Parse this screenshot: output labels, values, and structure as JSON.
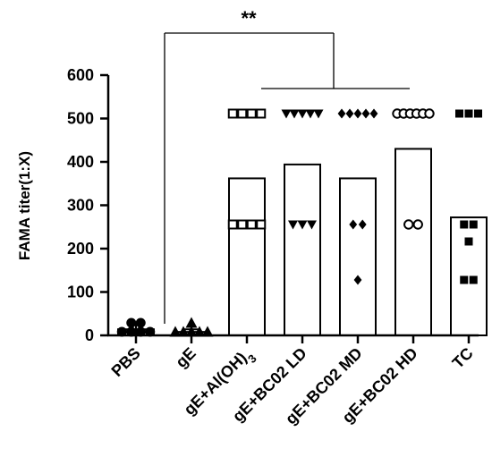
{
  "chart_data": {
    "type": "bar",
    "title": "",
    "xlabel": "",
    "ylabel": "FAMA titer(1:X)",
    "ylim": [
      0,
      600
    ],
    "yticks": [
      0,
      100,
      200,
      300,
      400,
      500,
      600
    ],
    "grid": false,
    "legend": "none",
    "categories": [
      "PBS",
      "gE",
      "gE+Al(OH)3",
      "gE+BC02 LD",
      "gE+BC02 MD",
      "gE+BC02 HD",
      "TC"
    ],
    "category_labels": [
      {
        "parts": [
          {
            "t": "PBS"
          }
        ]
      },
      {
        "parts": [
          {
            "t": "gE"
          }
        ]
      },
      {
        "parts": [
          {
            "t": "gE+Al(OH)"
          },
          {
            "t": "3",
            "sub": true
          }
        ]
      },
      {
        "parts": [
          {
            "t": "gE+BC02 LD"
          }
        ]
      },
      {
        "parts": [
          {
            "t": "gE+BC02 MD"
          }
        ]
      },
      {
        "parts": [
          {
            "t": "gE+BC02 HD"
          }
        ]
      },
      {
        "parts": [
          {
            "t": "TC"
          }
        ]
      }
    ],
    "bar_values": [
      14,
      8,
      362,
      394,
      362,
      430,
      272
    ],
    "error_sd": [
      10,
      6,
      0,
      0,
      0,
      0,
      0
    ],
    "markers": [
      "circle-filled",
      "triangle-filled",
      "square-open",
      "triangle-down-filled",
      "diamond-filled",
      "circle-open",
      "square-filled"
    ],
    "points": [
      [
        8,
        8,
        8,
        28,
        28,
        8
      ],
      [
        8,
        8,
        8,
        8,
        8,
        28
      ],
      [
        512,
        512,
        512,
        512,
        256,
        256,
        256,
        256
      ],
      [
        512,
        512,
        512,
        512,
        512,
        256,
        256,
        256
      ],
      [
        512,
        512,
        512,
        512,
        512,
        256,
        256,
        128
      ],
      [
        512,
        512,
        512,
        512,
        512,
        512,
        256,
        256
      ],
      [
        512,
        512,
        512,
        256,
        256,
        216,
        128,
        128
      ]
    ],
    "significance": [
      {
        "from": "gE",
        "to": "gE+BC02 LD..HD",
        "label": "**"
      }
    ]
  },
  "colors": {
    "ink": "#000000",
    "bar_fill": "#ffffff"
  }
}
